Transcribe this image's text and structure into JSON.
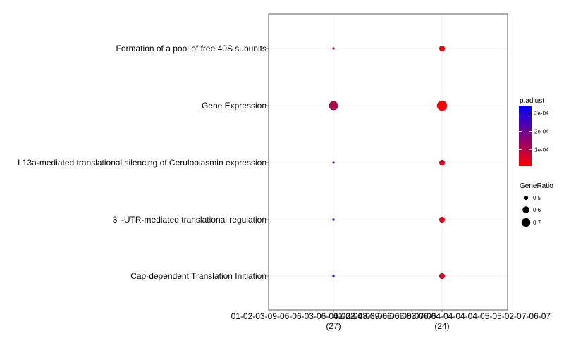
{
  "chart_data": {
    "type": "scatter",
    "categories_y": [
      "Formation of a pool of free 40S subunits",
      "Gene Expression",
      "L13a-mediated translational silencing of Ceruloplasmin expression",
      "3' -UTR-mediated translational regulation",
      "Cap-dependent Translation Initiation"
    ],
    "x_groups": [
      {
        "label": "01-02-03-09-06-06-03-06-04-02-04-03-05-06-08-07-06",
        "count": "(27)"
      },
      {
        "label": "01-02-03-09-06-06-03-06-04-04-04-04-05-05-02-07-06-07",
        "count": "(24)"
      }
    ],
    "points": [
      {
        "group": 0,
        "category": 0,
        "p_adjust": 0.00015,
        "gene_ratio": 0.4
      },
      {
        "group": 0,
        "category": 1,
        "p_adjust": 0.00011,
        "gene_ratio": 0.71
      },
      {
        "group": 0,
        "category": 2,
        "p_adjust": 0.00022,
        "gene_ratio": 0.4
      },
      {
        "group": 0,
        "category": 3,
        "p_adjust": 0.00024,
        "gene_ratio": 0.4
      },
      {
        "group": 0,
        "category": 4,
        "p_adjust": 0.00034,
        "gene_ratio": 0.4
      },
      {
        "group": 1,
        "category": 0,
        "p_adjust": 3e-05,
        "gene_ratio": 0.56
      },
      {
        "group": 1,
        "category": 1,
        "p_adjust": 1e-05,
        "gene_ratio": 0.76
      },
      {
        "group": 1,
        "category": 2,
        "p_adjust": 4e-05,
        "gene_ratio": 0.56
      },
      {
        "group": 1,
        "category": 3,
        "p_adjust": 4e-05,
        "gene_ratio": 0.56
      },
      {
        "group": 1,
        "category": 4,
        "p_adjust": 6e-05,
        "gene_ratio": 0.56
      }
    ],
    "color_legend": {
      "title": "p.adjust",
      "range": [
        1e-05,
        0.00034
      ],
      "low_color": "#ff0000",
      "high_color": "#0000ff",
      "ticks": [
        {
          "value": 0.0001,
          "label": "1e-04"
        },
        {
          "value": 0.0002,
          "label": "2e-04"
        },
        {
          "value": 0.0003,
          "label": "3e-04"
        }
      ]
    },
    "size_legend": {
      "title": "GeneRatio",
      "range": [
        0.4,
        0.76
      ],
      "items": [
        {
          "value": 0.5,
          "label": "0.5"
        },
        {
          "value": 0.6,
          "label": "0.6"
        },
        {
          "value": 0.7,
          "label": "0.7"
        }
      ]
    },
    "grid": true,
    "legend_position": "right"
  }
}
